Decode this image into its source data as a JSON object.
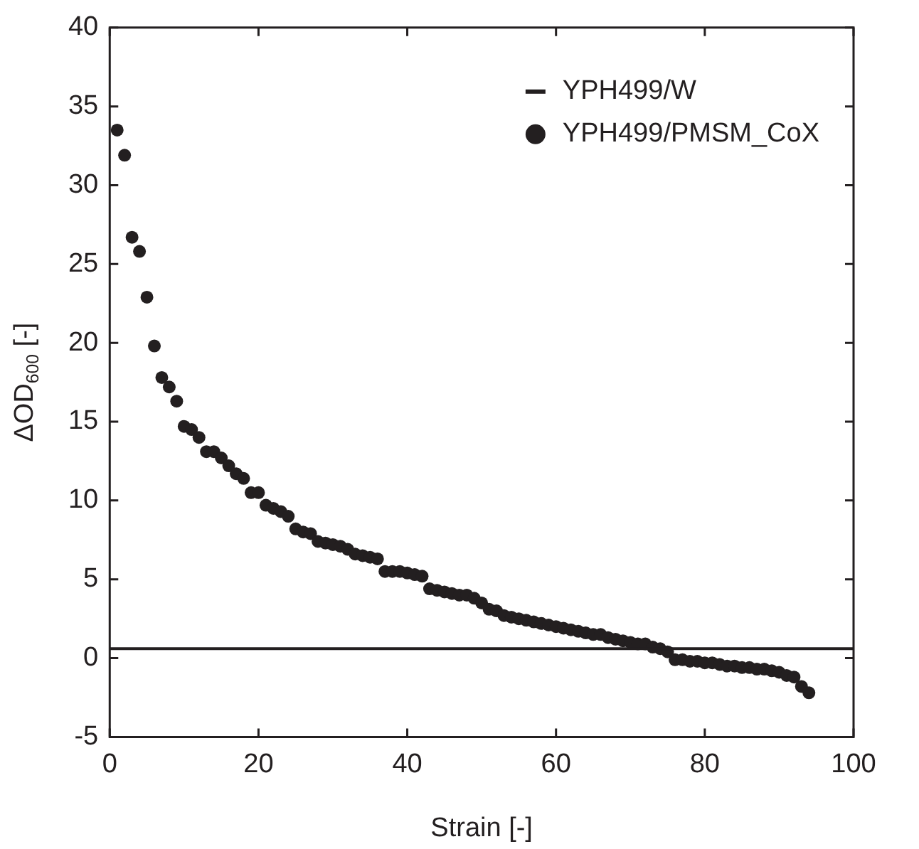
{
  "chart_data": {
    "type": "scatter",
    "xlabel": "Strain [-]",
    "ylabel": "ΔOD$_{600}$ [-]",
    "xlim": [
      0,
      100
    ],
    "xticks": [
      0,
      20,
      40,
      60,
      80,
      100
    ],
    "ylim": [
      -5,
      40
    ],
    "yticks": [
      -5,
      0,
      5,
      10,
      15,
      20,
      25,
      30,
      35,
      40
    ],
    "grid": false,
    "legend": "top right",
    "marker": "circle",
    "series": [
      {
        "name": "YPH499/W",
        "type": "line",
        "color": "#231f20",
        "x": [
          0,
          100
        ],
        "values": [
          0.6,
          0.6
        ],
        "marker": "none"
      },
      {
        "name": "YPH499/PMSM_CoX",
        "type": "scatter",
        "color": "#231f20",
        "x": [
          1,
          2,
          3,
          4,
          5,
          6,
          7,
          8,
          9,
          10,
          11,
          12,
          13,
          14,
          15,
          16,
          17,
          18,
          19,
          20,
          21,
          22,
          23,
          24,
          25,
          26,
          27,
          28,
          29,
          30,
          31,
          32,
          33,
          34,
          35,
          36,
          37,
          38,
          39,
          40,
          41,
          42,
          43,
          44,
          45,
          46,
          47,
          48,
          49,
          50,
          51,
          52,
          53,
          54,
          55,
          56,
          57,
          58,
          59,
          60,
          61,
          62,
          63,
          64,
          65,
          66,
          67,
          68,
          69,
          70,
          71,
          72,
          73,
          74,
          75,
          76,
          77,
          78,
          79,
          80,
          81,
          82,
          83,
          84,
          85,
          86,
          87,
          88,
          89,
          90,
          91,
          92,
          93,
          94
        ],
        "values": [
          33.5,
          31.9,
          26.7,
          25.8,
          22.9,
          19.8,
          17.8,
          17.2,
          16.3,
          14.7,
          14.5,
          14.0,
          13.1,
          13.1,
          12.7,
          12.2,
          11.7,
          11.4,
          10.5,
          10.5,
          9.7,
          9.5,
          9.3,
          9.0,
          8.2,
          8.0,
          7.9,
          7.4,
          7.3,
          7.2,
          7.1,
          6.9,
          6.6,
          6.5,
          6.4,
          6.3,
          5.5,
          5.5,
          5.5,
          5.4,
          5.3,
          5.2,
          4.4,
          4.3,
          4.2,
          4.1,
          4.0,
          4.0,
          3.8,
          3.5,
          3.1,
          3.0,
          2.7,
          2.6,
          2.5,
          2.4,
          2.3,
          2.2,
          2.1,
          2.0,
          1.9,
          1.8,
          1.7,
          1.6,
          1.5,
          1.5,
          1.3,
          1.2,
          1.1,
          1.0,
          0.9,
          0.9,
          0.7,
          0.6,
          0.4,
          -0.1,
          -0.1,
          -0.2,
          -0.2,
          -0.3,
          -0.3,
          -0.4,
          -0.5,
          -0.5,
          -0.6,
          -0.6,
          -0.7,
          -0.7,
          -0.8,
          -0.9,
          -1.1,
          -1.2,
          -1.8,
          -2.2
        ]
      }
    ]
  }
}
